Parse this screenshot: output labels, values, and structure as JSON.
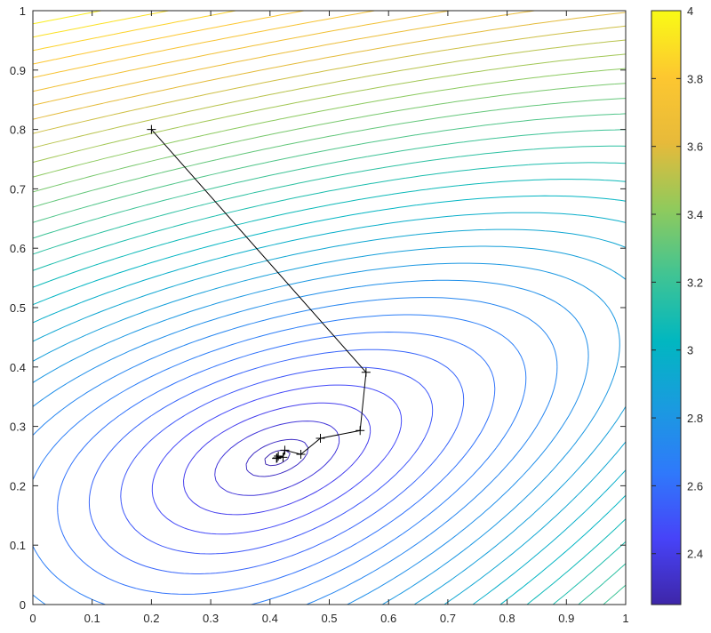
{
  "chart_data": {
    "type": "contour",
    "title": "",
    "xlabel": "",
    "ylabel": "",
    "xlim": [
      0,
      1
    ],
    "ylim": [
      0,
      1
    ],
    "x_ticks": [
      "0",
      "0.1",
      "0.2",
      "0.3",
      "0.4",
      "0.5",
      "0.6",
      "0.7",
      "0.8",
      "0.9",
      "1"
    ],
    "y_ticks": [
      "0",
      "0.1",
      "0.2",
      "0.3",
      "0.4",
      "0.5",
      "0.6",
      "0.7",
      "0.8",
      "0.9",
      "1"
    ],
    "grid": false,
    "colorbar": {
      "range": [
        2.25,
        4.0
      ],
      "ticks": [
        "2.4",
        "2.6",
        "2.8",
        "3",
        "3.2",
        "3.4",
        "3.6",
        "3.8",
        "4"
      ],
      "colormap": [
        "#3e26a8",
        "#4743f8",
        "#2f79fb",
        "#1a9bdf",
        "#01b7c0",
        "#41c493",
        "#90ca5c",
        "#e7ba3a",
        "#fdc730",
        "#f9fb15"
      ]
    },
    "contour_levels": {
      "min": 2.27,
      "max": 4.0,
      "count": 36
    },
    "function_minimum": {
      "x": 0.412,
      "y": 0.247,
      "value": 2.26
    },
    "path": {
      "line_color": "#000000",
      "marker": "+",
      "points": [
        {
          "x": 0.2,
          "y": 0.8
        },
        {
          "x": 0.562,
          "y": 0.391
        },
        {
          "x": 0.552,
          "y": 0.293
        },
        {
          "x": 0.485,
          "y": 0.28
        },
        {
          "x": 0.452,
          "y": 0.253
        },
        {
          "x": 0.425,
          "y": 0.26
        },
        {
          "x": 0.422,
          "y": 0.248
        },
        {
          "x": 0.414,
          "y": 0.25
        },
        {
          "x": 0.411,
          "y": 0.246
        },
        {
          "x": 0.412,
          "y": 0.247
        }
      ]
    }
  }
}
